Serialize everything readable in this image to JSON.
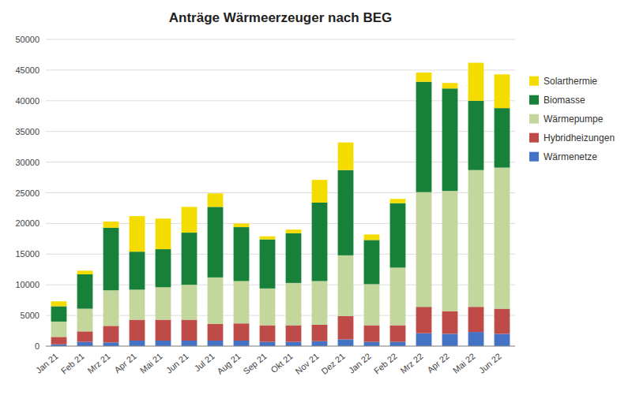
{
  "chart_data": {
    "type": "bar",
    "stacked": true,
    "title": "Anträge Wärmeerzeuger nach BEG",
    "categories": [
      "Jan 21",
      "Feb 21",
      "Mrz 21",
      "Apr 21",
      "Mai 21",
      "Jun 21",
      "Jul 21",
      "Aug 21",
      "Sep 21",
      "Okt 21",
      "Nov 21",
      "Dez 21",
      "Jan 22",
      "Feb 22",
      "Mrz 22",
      "Apr 22",
      "Mai 22",
      "Jun 22"
    ],
    "series": [
      {
        "name": "Wärmenetze",
        "color": "#4472C4",
        "values": [
          300,
          700,
          600,
          900,
          900,
          900,
          900,
          900,
          700,
          700,
          800,
          1100,
          700,
          700,
          2100,
          2000,
          2300,
          2000
        ]
      },
      {
        "name": "Hybridheizungen",
        "color": "#BE4B48",
        "values": [
          1200,
          1700,
          2700,
          3400,
          3400,
          3400,
          2700,
          2800,
          2700,
          2700,
          2700,
          3800,
          2700,
          2700,
          4300,
          3700,
          4100,
          4100
        ]
      },
      {
        "name": "Wärmepumpe",
        "color": "#C3D69B",
        "values": [
          2500,
          3700,
          5800,
          4900,
          5300,
          5700,
          7600,
          6900,
          6000,
          6900,
          7100,
          9900,
          6700,
          9400,
          18700,
          19600,
          22300,
          23000
        ]
      },
      {
        "name": "Biomasse",
        "color": "#17813A",
        "values": [
          2500,
          5600,
          10200,
          6200,
          6200,
          8500,
          11500,
          8800,
          8000,
          8100,
          12800,
          13900,
          7200,
          10500,
          18000,
          16700,
          11300,
          9700
        ]
      },
      {
        "name": "Solarthermie",
        "color": "#F5DC00",
        "values": [
          800,
          600,
          1000,
          5800,
          5000,
          4200,
          2200,
          600,
          500,
          600,
          3700,
          4500,
          900,
          700,
          1500,
          900,
          6200,
          5500
        ]
      }
    ],
    "ylim": [
      0,
      50000
    ],
    "yticks": [
      0,
      5000,
      10000,
      15000,
      20000,
      25000,
      30000,
      35000,
      40000,
      45000,
      50000
    ],
    "grid": true,
    "legend": "right"
  }
}
